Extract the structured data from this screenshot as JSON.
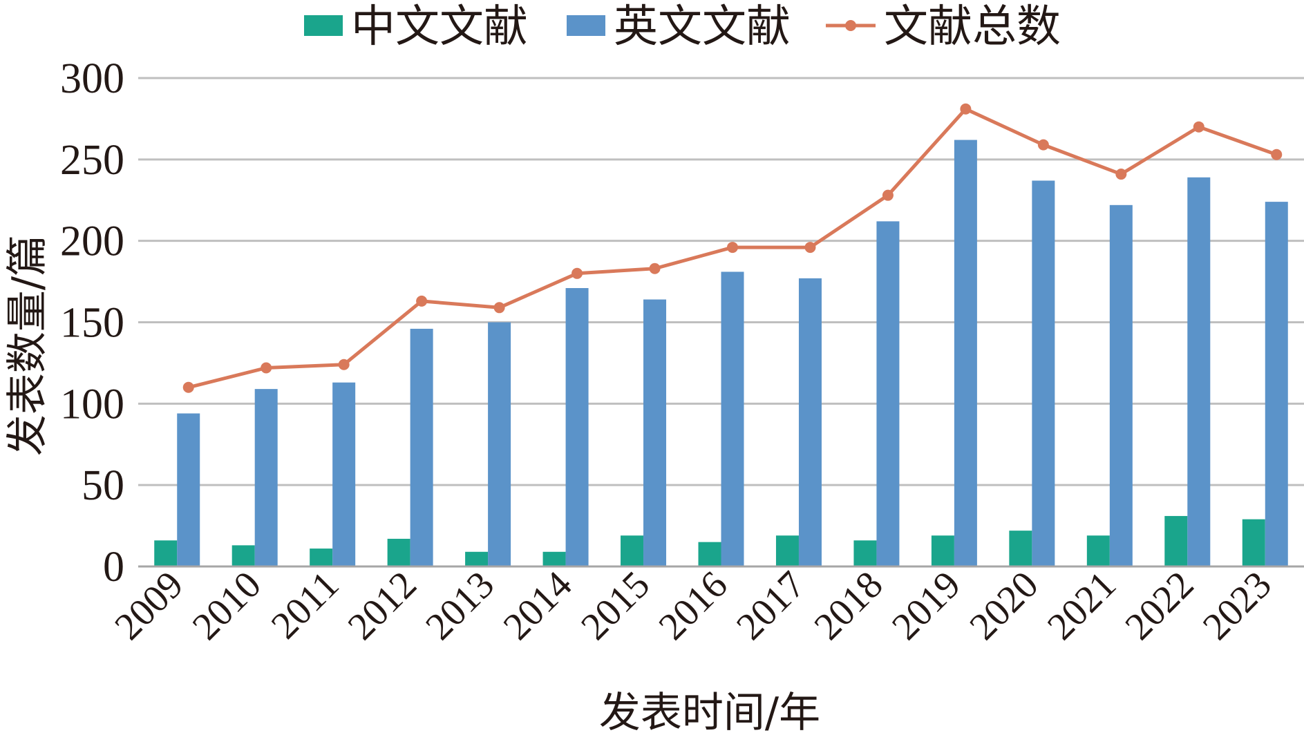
{
  "chart_data": {
    "type": "bar",
    "categories": [
      "2009",
      "2010",
      "2011",
      "2012",
      "2013",
      "2014",
      "2015",
      "2016",
      "2017",
      "2018",
      "2019",
      "2020",
      "2021",
      "2022",
      "2023"
    ],
    "series": [
      {
        "name": "中文文献",
        "kind": "bar",
        "color": "#1aa58c",
        "values": [
          16,
          13,
          11,
          17,
          9,
          9,
          19,
          15,
          19,
          16,
          19,
          22,
          19,
          31,
          29
        ]
      },
      {
        "name": "英文文献",
        "kind": "bar",
        "color": "#5b93c9",
        "values": [
          94,
          109,
          113,
          146,
          150,
          171,
          164,
          181,
          177,
          212,
          262,
          237,
          222,
          239,
          224
        ]
      },
      {
        "name": "文献总数",
        "kind": "line",
        "color": "#d9795a",
        "values": [
          110,
          122,
          124,
          163,
          159,
          180,
          183,
          196,
          196,
          228,
          281,
          259,
          241,
          270,
          253
        ]
      }
    ],
    "title": "",
    "xlabel": "发表时间/年",
    "ylabel": "发表数量/篇",
    "ylim": [
      0,
      300
    ],
    "yticks": [
      "0",
      "50",
      "100",
      "150",
      "200",
      "250",
      "300"
    ],
    "grid": true,
    "legend_position": "top-center"
  }
}
